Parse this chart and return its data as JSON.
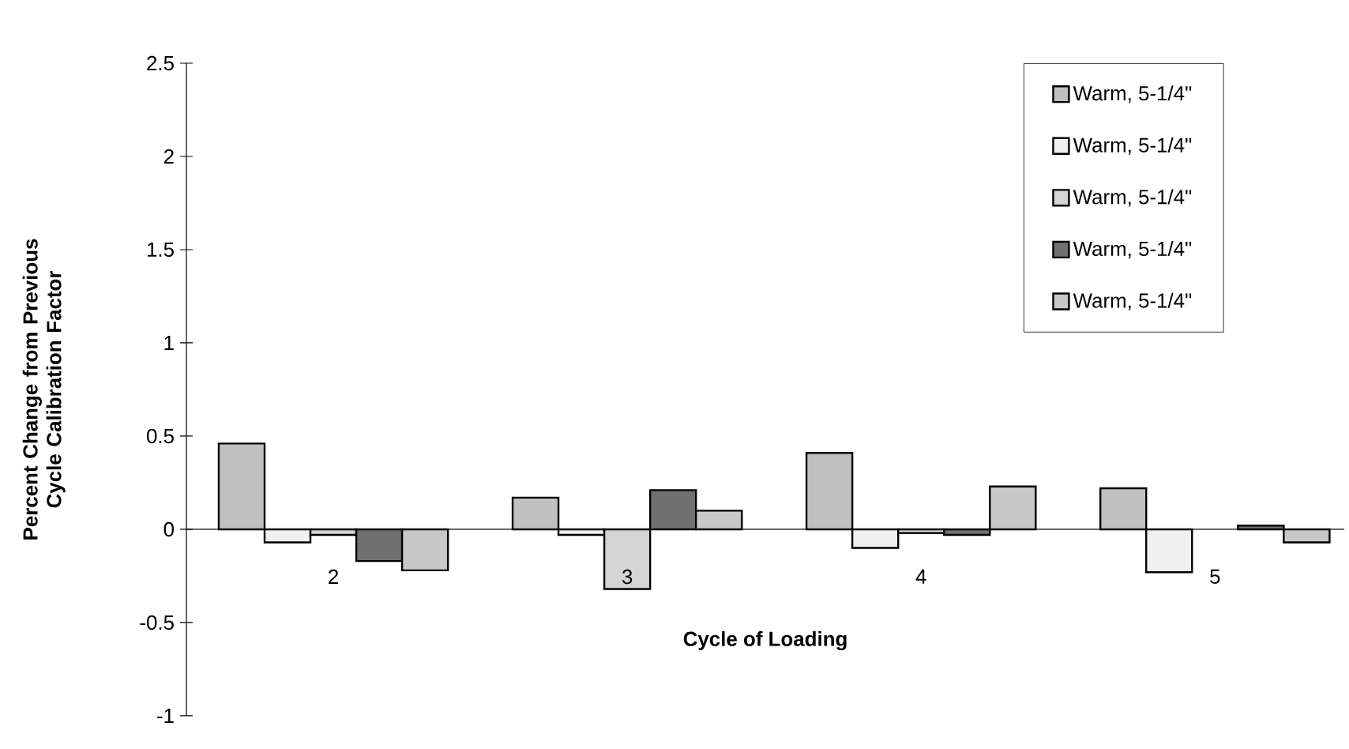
{
  "chart_data": {
    "type": "bar",
    "xlabel": "Cycle of Loading",
    "ylabel": "Percent Change from Previous Cycle Calibration Factor",
    "categories": [
      "2",
      "3",
      "4",
      "5"
    ],
    "series": [
      {
        "name": "Warm, 5-1/4\"",
        "color": "#c0c0c0",
        "values": [
          0.46,
          0.17,
          0.41,
          0.22
        ]
      },
      {
        "name": "Warm, 5-1/4\"",
        "color": "#f0f0f0",
        "values": [
          -0.07,
          -0.03,
          -0.1,
          -0.23
        ]
      },
      {
        "name": "Warm, 5-1/4\"",
        "color": "#d4d4d4",
        "values": [
          -0.03,
          -0.32,
          -0.02,
          null
        ]
      },
      {
        "name": "Warm, 5-1/4\"",
        "color": "#707070",
        "values": [
          -0.17,
          0.21,
          -0.03,
          0.02
        ]
      },
      {
        "name": "Warm, 5-1/4\"",
        "color": "#c8c8c8",
        "values": [
          -0.22,
          0.1,
          0.23,
          -0.07
        ]
      }
    ],
    "ylim": [
      -1,
      2.5
    ],
    "yticks": [
      -1,
      -0.5,
      0,
      0.5,
      1,
      1.5,
      2,
      2.5
    ],
    "grid": false,
    "legend": "top right"
  }
}
